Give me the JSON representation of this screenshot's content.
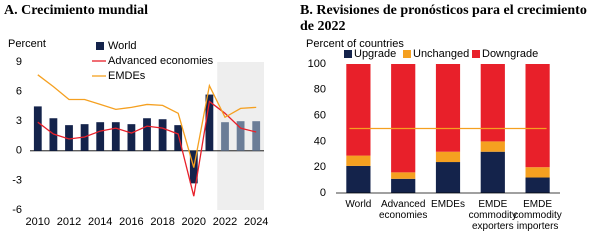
{
  "chart_data": [
    {
      "type": "bar_line",
      "title": "A. Crecimiento mundial",
      "y_label": "Percent",
      "x": [
        2010,
        2011,
        2012,
        2013,
        2014,
        2015,
        2016,
        2017,
        2018,
        2019,
        2020,
        2021,
        2022,
        2023,
        2024
      ],
      "xlim": [
        2009.5,
        2024.5
      ],
      "xticks": [
        2010,
        2012,
        2014,
        2016,
        2018,
        2020,
        2022,
        2024
      ],
      "ylim": [
        -6,
        9
      ],
      "yticks": [
        -6,
        -3,
        0,
        3,
        6,
        9
      ],
      "forecast_from": 2022,
      "forecast_color": "#6b7d97",
      "forecast_shade": "#eeeeee",
      "series": [
        {
          "name": "World",
          "type": "bar",
          "color": "#14234b",
          "values": [
            4.5,
            3.3,
            2.6,
            2.7,
            2.9,
            2.9,
            2.7,
            3.3,
            3.2,
            2.6,
            -3.3,
            5.7,
            2.9,
            3.0,
            3.0
          ]
        },
        {
          "name": "Advanced economies",
          "type": "line",
          "color": "#e8202a",
          "values": [
            2.9,
            1.7,
            1.2,
            1.4,
            2.0,
            2.3,
            1.8,
            2.5,
            2.3,
            1.7,
            -4.6,
            5.0,
            3.8,
            2.3,
            1.9
          ]
        },
        {
          "name": "EMDEs",
          "type": "line",
          "color": "#f5a020",
          "values": [
            7.7,
            6.5,
            5.2,
            5.2,
            4.7,
            4.2,
            4.4,
            4.7,
            4.6,
            3.8,
            -1.7,
            6.6,
            3.4,
            4.3,
            4.4
          ]
        }
      ]
    },
    {
      "type": "stacked_bar",
      "title": "B. Revisiones de pronósticos para el crecimiento de 2022",
      "y_label": "Percent of countries",
      "categories": [
        "World",
        "Advanced economies",
        "EMDEs",
        "EMDE commodity exporters",
        "EMDE commodity importers"
      ],
      "ylim": [
        0,
        100
      ],
      "yticks": [
        0,
        20,
        40,
        60,
        80,
        100
      ],
      "reference_line": 50,
      "reference_color": "#f5a020",
      "series": [
        {
          "name": "Upgrade",
          "color": "#14234b",
          "values": [
            21,
            11,
            24,
            32,
            12
          ]
        },
        {
          "name": "Unchanged",
          "color": "#f5a020",
          "values": [
            8,
            5,
            8,
            8,
            8
          ]
        },
        {
          "name": "Downgrade",
          "color": "#e8202a",
          "values": [
            71,
            84,
            68,
            60,
            80
          ]
        }
      ]
    }
  ]
}
